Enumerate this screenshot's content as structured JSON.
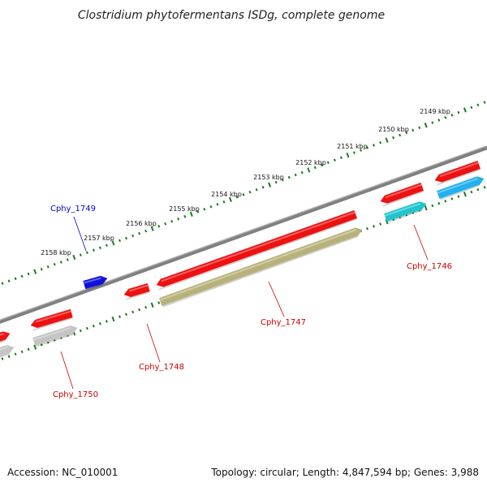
{
  "title": "Clostridium phytofermentans ISDg, complete genome",
  "accession": "Accession: NC_010001",
  "summary": "Topology: circular; Length: 4,847,594 bp; Genes: 3,988",
  "colors": {
    "backbone": "#808080",
    "tick_ring": "#1a7a1a",
    "cds_forward": "#ee1111",
    "cds_reverse_olive": "#b7b27a",
    "cds_reverse_grey": "#c4c4c4",
    "cds_cyan": "#22c4cc",
    "cds_light_blue": "#22b0ee",
    "cds_dark_blue": "#1010dd",
    "label_red": "#cc0000",
    "label_blue": "#0000cc"
  },
  "tick_labels": [
    "2149 kbp",
    "2150 kbp",
    "2151 kbp",
    "2152 kbp",
    "2153 kbp",
    "2154 kbp",
    "2155 kbp",
    "2156 kbp",
    "2157 kbp",
    "2158 kbp"
  ],
  "genes": [
    {
      "name": "Cphy_1746",
      "color": "label_red"
    },
    {
      "name": "Cphy_1747",
      "color": "label_red"
    },
    {
      "name": "Cphy_1748",
      "color": "label_red"
    },
    {
      "name": "Cphy_1749",
      "color": "label_blue"
    },
    {
      "name": "Cphy_1750",
      "color": "label_red"
    }
  ]
}
